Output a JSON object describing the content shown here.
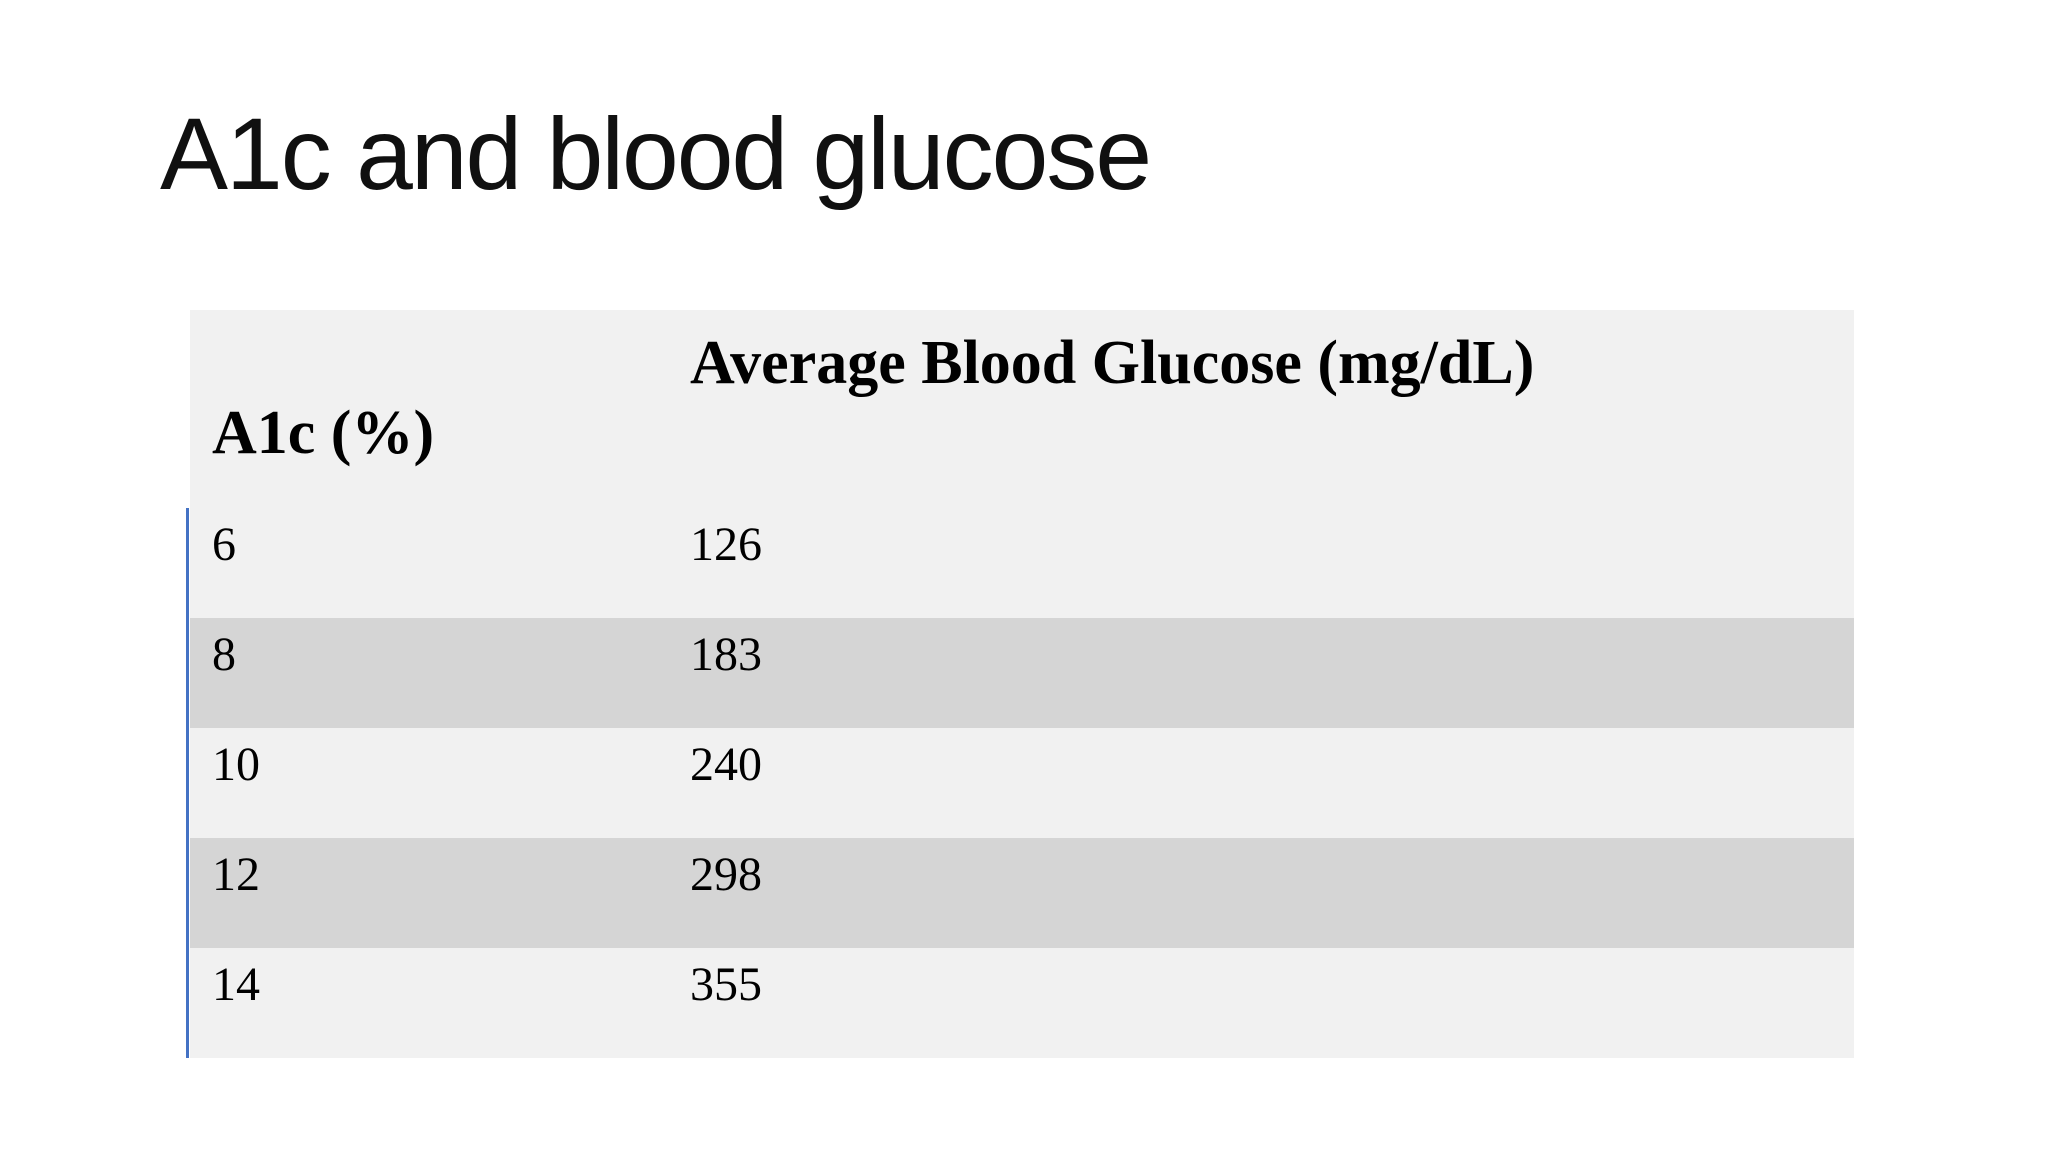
{
  "slide": {
    "title": "A1c and blood glucose"
  },
  "colors": {
    "background": "#ffffff",
    "row_light": "#f1f1f1",
    "row_dark": "#d5d5d5",
    "accent_line": "#4472c4",
    "title_text": "#101010",
    "table_text": "#000000"
  },
  "table": {
    "columns": [
      {
        "key": "a1c",
        "label": "A1c (%)"
      },
      {
        "key": "glucose",
        "label": "Average Blood Glucose (mg/dL)"
      }
    ],
    "rows": [
      {
        "a1c": "6",
        "glucose": "126"
      },
      {
        "a1c": "8",
        "glucose": "183"
      },
      {
        "a1c": "10",
        "glucose": "240"
      },
      {
        "a1c": "12",
        "glucose": "298"
      },
      {
        "a1c": "14",
        "glucose": "355"
      }
    ]
  }
}
